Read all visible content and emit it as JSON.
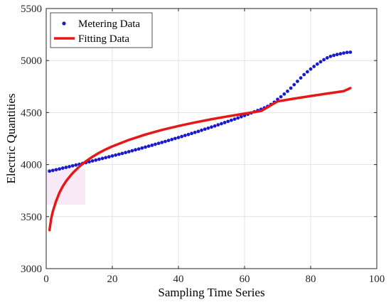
{
  "chart_data": {
    "type": "scatter",
    "title": "",
    "xlabel": "Sampling Time Series",
    "ylabel": "Electric Quantities",
    "xlim": [
      0,
      100
    ],
    "ylim": [
      3000,
      5500
    ],
    "xticks": [
      0,
      20,
      40,
      60,
      80,
      100
    ],
    "yticks": [
      3000,
      3500,
      4000,
      4500,
      5000,
      5500
    ],
    "grid": true,
    "legend_position": "top-left",
    "series": [
      {
        "name": "Metering Data",
        "type": "scatter",
        "color": "#1a1acc",
        "x": [
          1,
          2,
          3,
          4,
          5,
          6,
          7,
          8,
          9,
          10,
          11,
          12,
          13,
          14,
          15,
          16,
          17,
          18,
          19,
          20,
          21,
          22,
          23,
          24,
          25,
          26,
          27,
          28,
          29,
          30,
          31,
          32,
          33,
          34,
          35,
          36,
          37,
          38,
          39,
          40,
          41,
          42,
          43,
          44,
          45,
          46,
          47,
          48,
          49,
          50,
          51,
          52,
          53,
          54,
          55,
          56,
          57,
          58,
          59,
          60,
          61,
          62,
          63,
          64,
          65,
          66,
          67,
          68,
          69,
          70,
          71,
          72,
          73,
          74,
          75,
          76,
          77,
          78,
          79,
          80,
          81,
          82,
          83,
          84,
          85,
          86,
          87,
          88,
          89,
          90,
          91,
          92
        ],
        "y": [
          3937,
          3944,
          3951,
          3958,
          3966,
          3973,
          3980,
          3988,
          3996,
          4003,
          4011,
          4019,
          4027,
          4035,
          4043,
          4051,
          4059,
          4067,
          4075,
          4083,
          4091,
          4099,
          4107,
          4116,
          4124,
          4133,
          4142,
          4150,
          4159,
          4168,
          4177,
          4186,
          4195,
          4204,
          4213,
          4222,
          4232,
          4241,
          4251,
          4260,
          4270,
          4280,
          4289,
          4299,
          4309,
          4319,
          4330,
          4340,
          4350,
          4361,
          4371,
          4382,
          4393,
          4404,
          4415,
          4426,
          4437,
          4448,
          4460,
          4472,
          4484,
          4496,
          4508,
          4520,
          4532,
          4545,
          4560,
          4578,
          4600,
          4627,
          4652,
          4678,
          4705,
          4735,
          4768,
          4800,
          4833,
          4865,
          4892,
          4918,
          4943,
          4966,
          4988,
          5008,
          5026,
          5040,
          5050,
          5058,
          5065,
          5072,
          5078,
          5080
        ]
      },
      {
        "name": "Fitting Data",
        "type": "line",
        "color": "#e81717",
        "x": [
          1,
          1.5,
          2,
          3,
          4,
          5,
          6,
          7,
          8,
          10,
          12,
          14,
          16,
          18,
          20,
          25,
          30,
          35,
          40,
          45,
          50,
          55,
          60,
          65,
          70,
          75,
          80,
          85,
          90,
          92
        ],
        "y": [
          3370,
          3480,
          3550,
          3650,
          3730,
          3790,
          3840,
          3880,
          3918,
          3980,
          4032,
          4075,
          4113,
          4146,
          4175,
          4237,
          4289,
          4333,
          4371,
          4405,
          4436,
          4464,
          4490,
          4515,
          4608,
          4634,
          4659,
          4683,
          4706,
          4735
        ]
      }
    ]
  }
}
